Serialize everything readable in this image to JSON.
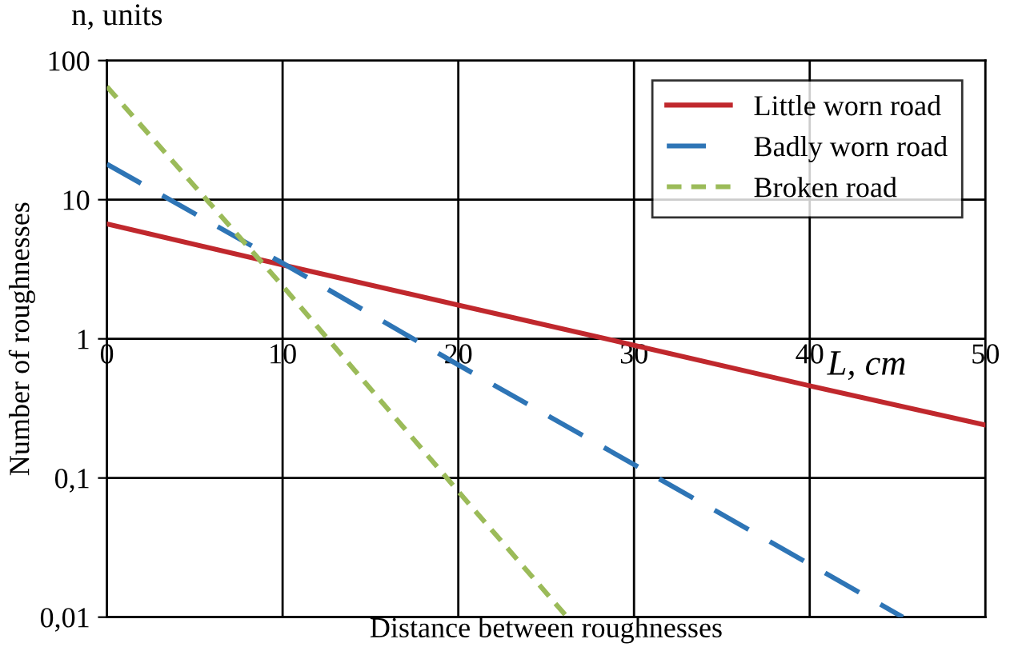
{
  "chart_data": {
    "type": "line",
    "xlabel": "Distance between roughnesses",
    "ylabel": "Number of roughnesses",
    "annotations": [
      "n, units",
      "L, cm"
    ],
    "x": [
      0,
      10,
      20,
      30,
      40,
      50
    ],
    "xlim": [
      0,
      50
    ],
    "xticks": [
      0,
      10,
      20,
      30,
      40,
      50
    ],
    "ylim": [
      0.01,
      100
    ],
    "yticks": [
      {
        "value": 0.01,
        "label": "0,01"
      },
      {
        "value": 0.1,
        "label": "0,1"
      },
      1,
      10,
      100
    ],
    "log": true,
    "grid": true,
    "legend": "top right",
    "marker": "none",
    "series": [
      {
        "name": "Little worn road",
        "color": "#c0282d",
        "line_style": "solid",
        "values": [
          6.7,
          3.4,
          1.75,
          0.9,
          0.46,
          0.24
        ]
      },
      {
        "name": "Badly worn road",
        "color": "#2e75b6",
        "line_style": "dashed",
        "x": [
          0,
          10,
          20,
          30,
          40,
          45.3
        ],
        "values": [
          18,
          3.5,
          0.65,
          0.125,
          0.024,
          0.01
        ]
      },
      {
        "name": "Broken road",
        "color": "#9bbb59",
        "line_style": "dotted",
        "x": [
          0,
          10,
          20,
          26.2
        ],
        "values": [
          65,
          2.4,
          0.08,
          0.01
        ]
      }
    ]
  }
}
